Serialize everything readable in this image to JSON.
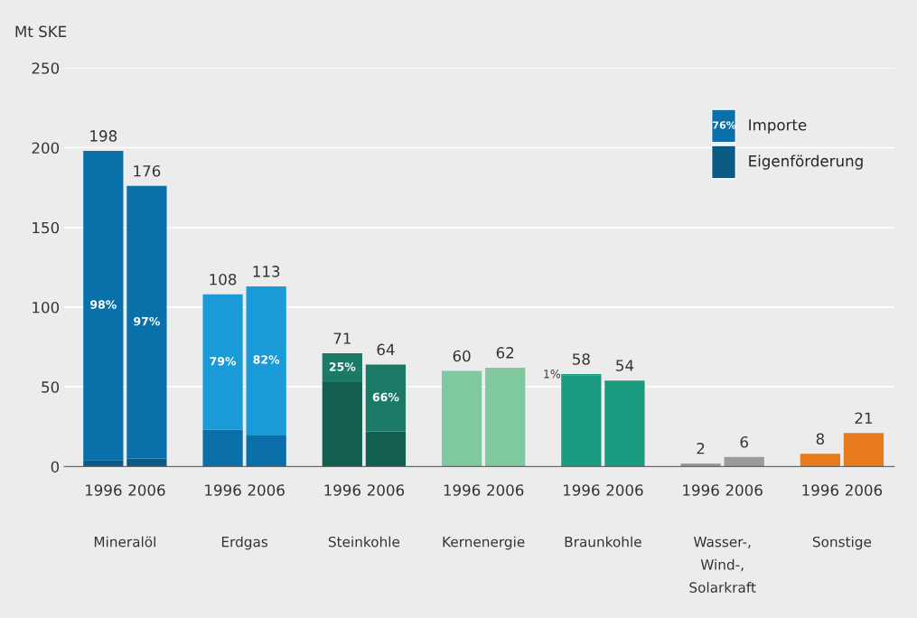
{
  "chart_data": {
    "type": "bar",
    "stacked": true,
    "ylabel": "Mt SKE",
    "categories": [
      "1996",
      "2006",
      "1996",
      "2006",
      "1996",
      "2006",
      "1996",
      "2006",
      "1996",
      "2006",
      "1996",
      "2006",
      "1996",
      "2006"
    ],
    "series": [
      {
        "name": "Eigenförderung",
        "color": "#0b5a84",
        "colors": [
          "#0b5a84",
          "#0b5a84",
          "#0a6fa8",
          "#0a6fa8",
          "#125e4f",
          "#125e4f",
          "#7fc8a0",
          "#7fc8a0",
          "#1a9a7e",
          "#1a9a7e",
          "#9a9a9a",
          "#9a9a9a",
          "#e87a1e",
          "#e87a1e"
        ],
        "values": [
          4,
          5,
          23,
          20,
          53,
          22,
          60,
          62,
          57,
          54,
          2,
          6,
          8,
          21
        ]
      },
      {
        "name": "Importe",
        "color": "#0a70a9",
        "colors": [
          "#0a70a9",
          "#0a70a9",
          "#1a9ad6",
          "#1a9ad6",
          "#1b7a66",
          "#1b7a66",
          "#7fc8a0",
          "#7fc8a0",
          "#1a9a7e",
          "#1a9a7e",
          "#9a9a9a",
          "#9a9a9a",
          "#e87a1e",
          "#e87a1e"
        ],
        "values": [
          194,
          171,
          85,
          93,
          18,
          42,
          null,
          null,
          1,
          null,
          null,
          null,
          null,
          null
        ]
      }
    ],
    "totals": [
      "198",
      "176",
      "108",
      "113",
      "71",
      "64",
      "60",
      "62",
      "58",
      "54",
      "2",
      "6",
      "8",
      "21"
    ],
    "ylim": [
      0,
      250
    ],
    "yticks": [
      0,
      50,
      100,
      150,
      200,
      250
    ],
    "grid": "y",
    "legend": "top right",
    "annotations": [
      "Mineralöl",
      "Erdgas",
      "Steinkohle",
      "Kernenergie",
      "Braunkohle",
      "Wasser-,\nWind-,\nSolarkraft",
      "Sonstige",
      "76%",
      "98%",
      "97%",
      "79%",
      "82%",
      "25%",
      "66%",
      "1%"
    ]
  }
}
